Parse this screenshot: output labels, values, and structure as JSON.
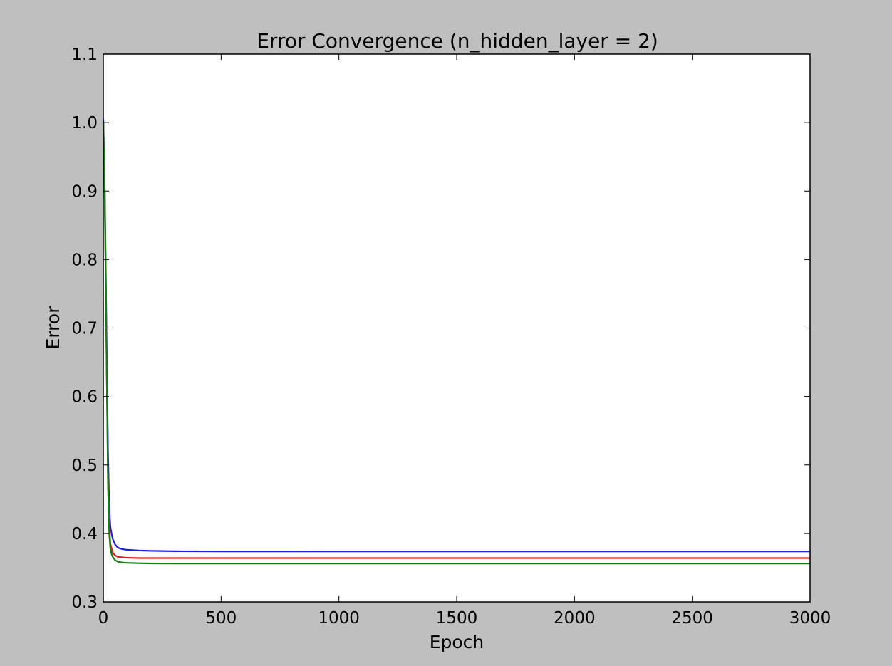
{
  "chart_data": {
    "type": "line",
    "title": "Error Convergence (n_hidden_layer = 2)",
    "xlabel": "Epoch",
    "ylabel": "Error",
    "xlim": [
      0,
      3000
    ],
    "ylim": [
      0.3,
      1.1
    ],
    "xticks": [
      0,
      500,
      1000,
      1500,
      2000,
      2500,
      3000
    ],
    "xtick_labels": [
      "0",
      "500",
      "1000",
      "1500",
      "2000",
      "2500",
      "3000"
    ],
    "yticks": [
      0.3,
      0.4,
      0.5,
      0.6,
      0.7,
      0.8,
      0.9,
      1.0,
      1.1
    ],
    "ytick_labels": [
      "0.3",
      "0.4",
      "0.5",
      "0.6",
      "0.7",
      "0.8",
      "0.9",
      "1.0",
      "1.1"
    ],
    "grid": false,
    "legend": "none",
    "series": [
      {
        "color": "#1f1fe0",
        "x": [
          0,
          5,
          10,
          15,
          20,
          25,
          30,
          35,
          40,
          50,
          60,
          70,
          80,
          100,
          150,
          200,
          300,
          500,
          1000,
          1500,
          2000,
          2500,
          3000
        ],
        "y": [
          1.005,
          0.93,
          0.8,
          0.65,
          0.52,
          0.44,
          0.41,
          0.4,
          0.392,
          0.384,
          0.38,
          0.378,
          0.377,
          0.376,
          0.375,
          0.3745,
          0.374,
          0.3738,
          0.3737,
          0.3737,
          0.3737,
          0.3737,
          0.3737
        ]
      },
      {
        "color": "#e01f1f",
        "x": [
          0,
          5,
          10,
          15,
          20,
          25,
          30,
          35,
          40,
          50,
          60,
          70,
          80,
          100,
          150,
          200,
          300,
          500,
          1000,
          1500,
          2000,
          2500,
          3000
        ],
        "y": [
          1.0,
          0.92,
          0.78,
          0.62,
          0.48,
          0.41,
          0.385,
          0.378,
          0.372,
          0.368,
          0.366,
          0.3655,
          0.365,
          0.3645,
          0.364,
          0.364,
          0.364,
          0.364,
          0.364,
          0.364,
          0.364,
          0.364,
          0.364
        ]
      },
      {
        "color": "#137f13",
        "x": [
          0,
          5,
          10,
          15,
          20,
          25,
          30,
          35,
          40,
          50,
          60,
          70,
          80,
          100,
          150,
          200,
          300,
          500,
          1000,
          1500,
          2000,
          2500,
          3000
        ],
        "y": [
          1.0,
          0.92,
          0.78,
          0.62,
          0.47,
          0.4,
          0.378,
          0.37,
          0.366,
          0.361,
          0.359,
          0.358,
          0.3575,
          0.357,
          0.3565,
          0.3562,
          0.356,
          0.356,
          0.356,
          0.356,
          0.356,
          0.356,
          0.356
        ]
      }
    ]
  }
}
